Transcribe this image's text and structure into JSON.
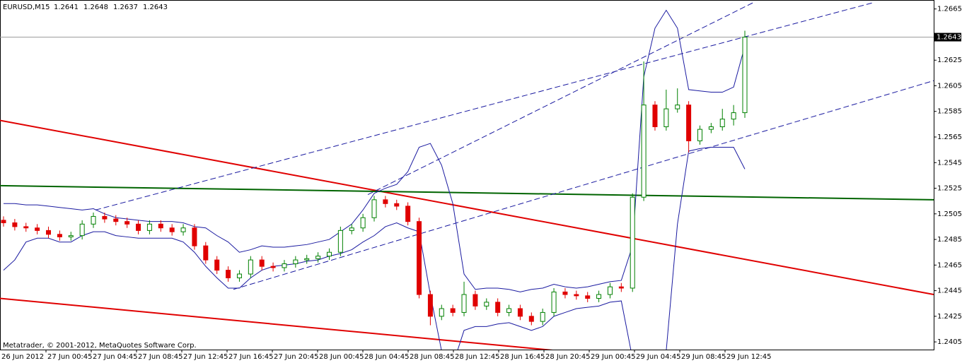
{
  "chart_data": {
    "type": "candlestick",
    "title": "EURUSD,M15",
    "quote": [
      1.2641,
      1.2648,
      1.2637,
      1.2643
    ],
    "current_price": 1.2643,
    "footer": "Metatrader, © 2001-2012, MetaQuotes Software Corp.",
    "x_labels": [
      "26 Jun 2012",
      "27 Jun 00:45",
      "27 Jun 04:45",
      "27 Jun 08:45",
      "27 Jun 12:45",
      "27 Jun 16:45",
      "27 Jun 20:45",
      "28 Jun 00:45",
      "28 Jun 04:45",
      "28 Jun 08:45",
      "28 Jun 12:45",
      "28 Jun 16:45",
      "28 Jun 20:45",
      "29 Jun 00:45",
      "29 Jun 04:45",
      "29 Jun 08:45",
      "29 Jun 12:45"
    ],
    "ylim": [
      1.2399,
      1.2672
    ],
    "yticks": [
      1.2665,
      1.2625,
      1.2605,
      1.2585,
      1.2565,
      1.2545,
      1.2525,
      1.2505,
      1.2485,
      1.2465,
      1.2445,
      1.2425,
      1.2405
    ],
    "up_color": "#008000",
    "down_color": "#e00000",
    "open": [
      1.25,
      1.2498,
      1.2495,
      1.2494,
      1.2492,
      1.2489,
      1.2487,
      1.2488,
      1.2497,
      1.2503,
      1.2501,
      1.2499,
      1.2497,
      1.2492,
      1.2497,
      1.2494,
      1.2491,
      1.2494,
      1.248,
      1.2469,
      1.2461,
      1.2455,
      1.2458,
      1.2469,
      1.2464,
      1.2463,
      1.2466,
      1.2469,
      1.247,
      1.2472,
      1.2475,
      1.2492,
      1.2494,
      1.2502,
      1.2516,
      1.2513,
      1.2511,
      1.2499,
      1.2442,
      1.2425,
      1.2431,
      1.2428,
      1.2442,
      1.2433,
      1.2436,
      1.2428,
      1.2431,
      1.2425,
      1.2421,
      1.2428,
      1.2444,
      1.2442,
      1.2441,
      1.2439,
      1.2442,
      1.2448,
      1.2447,
      1.2518,
      1.259,
      1.2573,
      1.2587,
      1.259,
      1.2562,
      1.2571,
      1.2573,
      1.2579,
      1.2584
    ],
    "high": [
      1.2503,
      1.2501,
      1.2498,
      1.2497,
      1.2495,
      1.2492,
      1.2491,
      1.25,
      1.2506,
      1.2506,
      1.2504,
      1.2502,
      1.25,
      1.25,
      1.25,
      1.2497,
      1.2497,
      1.2497,
      1.2483,
      1.2472,
      1.2464,
      1.2461,
      1.2472,
      1.2472,
      1.2467,
      1.2469,
      1.2472,
      1.2473,
      1.2475,
      1.2478,
      1.2495,
      1.2497,
      1.2505,
      1.2519,
      1.2519,
      1.2516,
      1.2514,
      1.2502,
      1.2445,
      1.2434,
      1.2434,
      1.2452,
      1.2445,
      1.2439,
      1.2439,
      1.2434,
      1.2434,
      1.2428,
      1.2431,
      1.2447,
      1.2447,
      1.2445,
      1.2444,
      1.2445,
      1.2451,
      1.2451,
      1.2521,
      1.2624,
      1.2593,
      1.2602,
      1.2603,
      1.2593,
      1.2574,
      1.2576,
      1.2587,
      1.259,
      1.2648
    ],
    "low": [
      1.2495,
      1.2492,
      1.2491,
      1.2489,
      1.2486,
      1.2484,
      1.2484,
      1.2485,
      1.2494,
      1.2498,
      1.2496,
      1.2494,
      1.2489,
      1.2489,
      1.2491,
      1.2488,
      1.2488,
      1.2477,
      1.2466,
      1.2458,
      1.2452,
      1.2452,
      1.2455,
      1.2461,
      1.246,
      1.246,
      1.2463,
      1.2466,
      1.2467,
      1.2469,
      1.2472,
      1.2489,
      1.2491,
      1.2499,
      1.251,
      1.2508,
      1.2496,
      1.2439,
      1.2418,
      1.2422,
      1.2425,
      1.2425,
      1.243,
      1.243,
      1.2425,
      1.2425,
      1.2422,
      1.2418,
      1.2418,
      1.2425,
      1.2439,
      1.2438,
      1.2436,
      1.2436,
      1.2439,
      1.2444,
      1.2444,
      1.2515,
      1.257,
      1.257,
      1.2584,
      1.2553,
      1.2559,
      1.2568,
      1.257,
      1.2574,
      1.258
    ],
    "close": [
      1.2498,
      1.2495,
      1.2494,
      1.2492,
      1.2489,
      1.2487,
      1.2488,
      1.2497,
      1.2503,
      1.2501,
      1.2499,
      1.2497,
      1.2492,
      1.2497,
      1.2494,
      1.2491,
      1.2494,
      1.248,
      1.2469,
      1.2461,
      1.2455,
      1.2458,
      1.2469,
      1.2464,
      1.2463,
      1.2466,
      1.2469,
      1.247,
      1.2472,
      1.2475,
      1.2492,
      1.2494,
      1.2502,
      1.2516,
      1.2513,
      1.2511,
      1.2499,
      1.2442,
      1.2425,
      1.2431,
      1.2428,
      1.2442,
      1.2433,
      1.2436,
      1.2428,
      1.2431,
      1.2425,
      1.2421,
      1.2428,
      1.2444,
      1.2442,
      1.2441,
      1.2439,
      1.2442,
      1.2448,
      1.2447,
      1.2518,
      1.259,
      1.2573,
      1.2587,
      1.259,
      1.2562,
      1.2571,
      1.2573,
      1.2579,
      1.2584,
      1.2643
    ],
    "bands": {
      "color": "#1a1aa0",
      "upper": [
        1.2513,
        1.2513,
        1.2512,
        1.2512,
        1.2511,
        1.251,
        1.2509,
        1.2508,
        1.2509,
        1.2505,
        1.2502,
        1.2501,
        1.25,
        1.2499,
        1.2499,
        1.2499,
        1.2498,
        1.2495,
        1.2494,
        1.2488,
        1.2483,
        1.2475,
        1.2477,
        1.248,
        1.2479,
        1.2479,
        1.248,
        1.2481,
        1.2483,
        1.2485,
        1.2491,
        1.2497,
        1.2508,
        1.2521,
        1.2525,
        1.2528,
        1.2538,
        1.2557,
        1.256,
        1.2543,
        1.2513,
        1.2458,
        1.2446,
        1.2447,
        1.2447,
        1.2446,
        1.2444,
        1.2446,
        1.2447,
        1.245,
        1.2448,
        1.2447,
        1.2448,
        1.245,
        1.2452,
        1.2453,
        1.248,
        1.2612,
        1.265,
        1.2664,
        1.265,
        1.2602,
        1.2601,
        1.26,
        1.26,
        1.2604,
        1.2636
      ],
      "lower": [
        1.2461,
        1.2469,
        1.2483,
        1.2486,
        1.2486,
        1.2483,
        1.2483,
        1.2488,
        1.2491,
        1.2491,
        1.2488,
        1.2487,
        1.2486,
        1.2486,
        1.2486,
        1.2486,
        1.2483,
        1.2475,
        1.2464,
        1.2455,
        1.2447,
        1.2447,
        1.2455,
        1.2461,
        1.2464,
        1.2465,
        1.2466,
        1.2468,
        1.2469,
        1.2472,
        1.2474,
        1.2477,
        1.2483,
        1.2488,
        1.2495,
        1.2498,
        1.2494,
        1.2491,
        1.2442,
        1.2398,
        1.2387,
        1.2414,
        1.2417,
        1.2417,
        1.2419,
        1.242,
        1.2417,
        1.2414,
        1.2417,
        1.2425,
        1.2428,
        1.2431,
        1.2432,
        1.2433,
        1.2436,
        1.2437,
        1.2392,
        1.2387,
        1.2387,
        1.2398,
        1.2497,
        1.2554,
        1.2556,
        1.2557,
        1.2557,
        1.2557,
        1.254
      ]
    },
    "lines": [
      {
        "color": "#e00000",
        "style": "solid",
        "values": [
          1.2578,
          1.2442
        ]
      },
      {
        "color": "#e00000",
        "style": "solid",
        "values": [
          1.2439,
          1.2398
        ]
      },
      {
        "color": "#006400",
        "style": "solid",
        "values": [
          1.2527,
          1.2516
        ]
      },
      {
        "color": "#1a1aa0",
        "style": "dashed",
        "values": [
          1.2508,
          1.267
        ]
      },
      {
        "color": "#1a1aa0",
        "style": "dashed",
        "values": [
          1.2446,
          1.2609
        ]
      },
      {
        "color": "#1a1aa0",
        "style": "dashed",
        "values": [
          1.252,
          1.267
        ]
      }
    ]
  }
}
